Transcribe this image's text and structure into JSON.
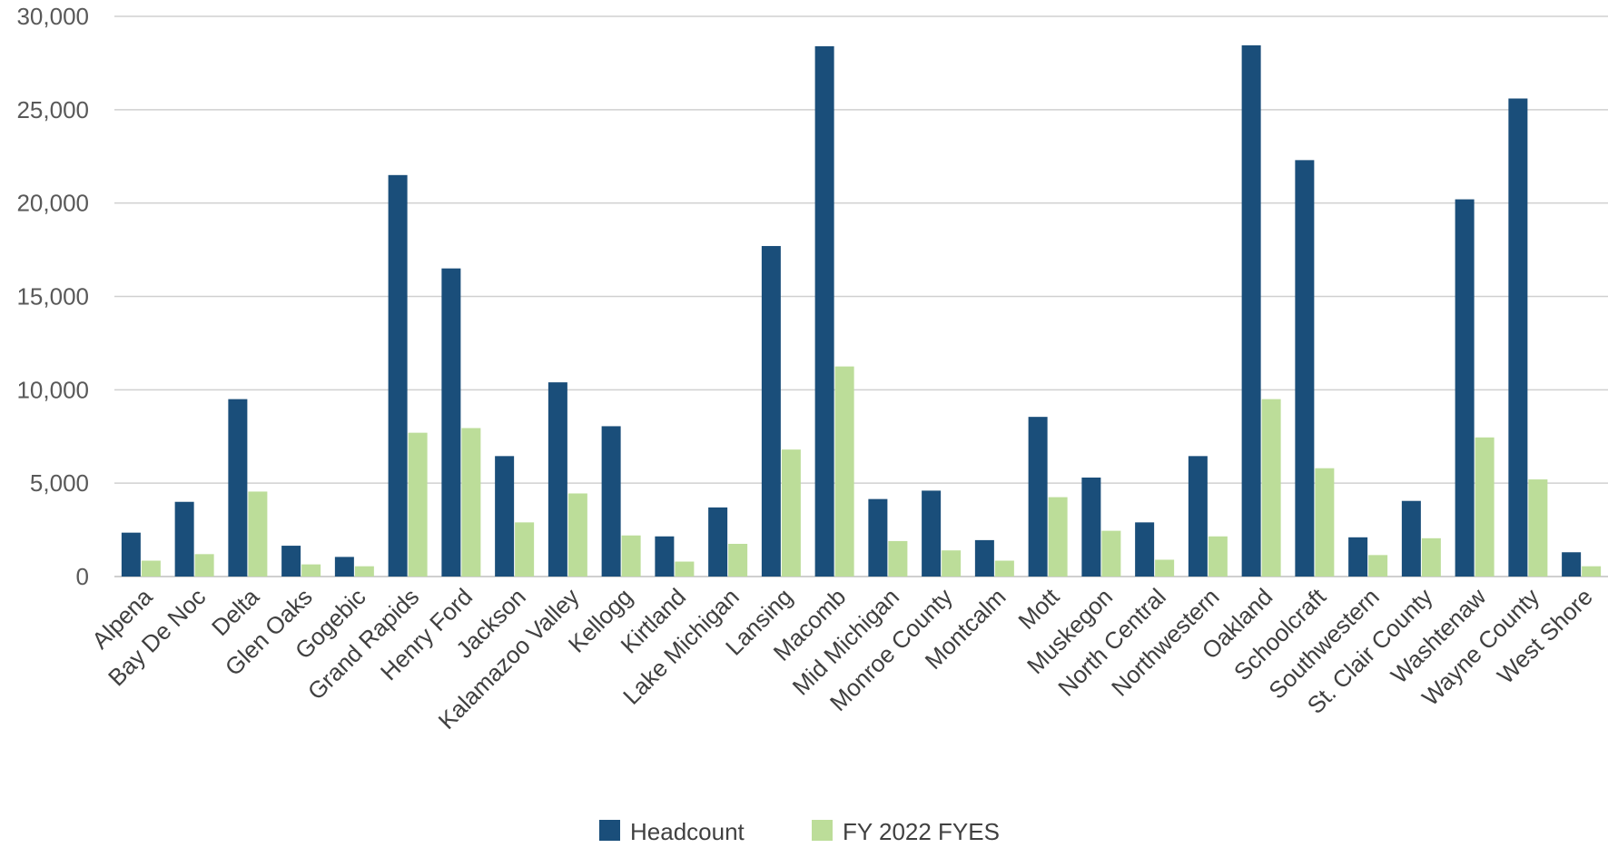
{
  "chart_data": {
    "type": "bar",
    "categories": [
      "Alpena",
      "Bay De Noc",
      "Delta",
      "Glen Oaks",
      "Gogebic",
      "Grand Rapids",
      "Henry Ford",
      "Jackson",
      "Kalamazoo Valley",
      "Kellogg",
      "Kirtland",
      "Lake Michigan",
      "Lansing",
      "Macomb",
      "Mid Michigan",
      "Monroe County",
      "Montcalm",
      "Mott",
      "Muskegon",
      "North Central",
      "Northwestern",
      "Oakland",
      "Schoolcraft",
      "Southwestern",
      "St. Clair County",
      "Washtenaw",
      "Wayne County",
      "West Shore"
    ],
    "series": [
      {
        "name": "Headcount",
        "color": "#1a4e7a",
        "values": [
          2350,
          4000,
          9500,
          1650,
          1050,
          21500,
          16500,
          6450,
          10400,
          8050,
          2150,
          3700,
          17700,
          28400,
          4150,
          4600,
          1950,
          8550,
          5300,
          2900,
          6450,
          28450,
          22300,
          2100,
          4050,
          20200,
          25600,
          1300
        ]
      },
      {
        "name": "FY 2022 FYES",
        "color": "#bcdd99",
        "values": [
          850,
          1200,
          4550,
          650,
          550,
          7700,
          7950,
          2900,
          4450,
          2200,
          800,
          1750,
          6800,
          11250,
          1900,
          1400,
          850,
          4250,
          2450,
          900,
          2150,
          9500,
          5800,
          1150,
          2050,
          7450,
          5200,
          550
        ]
      }
    ],
    "ylim": [
      0,
      30000
    ],
    "yticks": [
      "0",
      "5,000",
      "10,000",
      "15,000",
      "20,000",
      "25,000",
      "30,000"
    ],
    "ytick_values": [
      0,
      5000,
      10000,
      15000,
      20000,
      25000,
      30000
    ],
    "grid": true,
    "legend_position": "bottom",
    "title": "",
    "xlabel": "",
    "ylabel": ""
  }
}
